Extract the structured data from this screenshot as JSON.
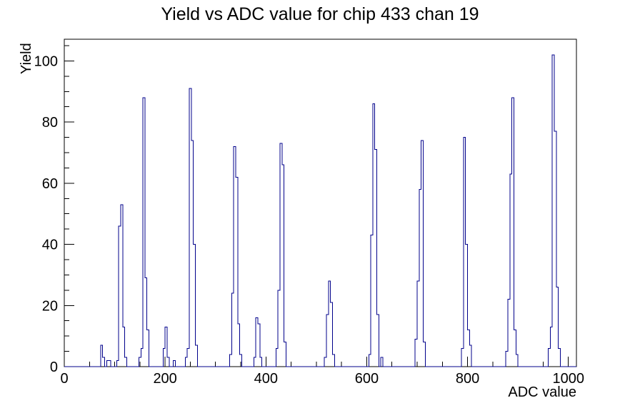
{
  "title": "Yield vs ADC value for chip 433 chan 19",
  "colors": {
    "histogram_line": "#00008b",
    "axis": "#000000",
    "background": "#ffffff"
  },
  "chart_data": {
    "type": "bar",
    "title": "Yield vs ADC value for chip 433 chan 19",
    "xlabel": "ADC value",
    "ylabel": "Yield",
    "xlim": [
      0,
      1016
    ],
    "ylim": [
      0,
      107.1
    ],
    "grid": false,
    "legend": "none",
    "bin_width": 4,
    "x_major_ticks": [
      0,
      200,
      400,
      600,
      800,
      1000
    ],
    "x_minor_step": 50,
    "y_major_ticks": [
      0,
      20,
      40,
      60,
      80,
      100
    ],
    "y_minor_step": 5,
    "bins_note": "sparse list of [bin_left_edge_ADC, yield_count]; all other bins are 0",
    "bins": [
      [
        72,
        7
      ],
      [
        76,
        3
      ],
      [
        84,
        2
      ],
      [
        88,
        2
      ],
      [
        104,
        2
      ],
      [
        108,
        46
      ],
      [
        112,
        53
      ],
      [
        116,
        13
      ],
      [
        120,
        3
      ],
      [
        148,
        3
      ],
      [
        152,
        6
      ],
      [
        156,
        88
      ],
      [
        160,
        29
      ],
      [
        164,
        12
      ],
      [
        196,
        6
      ],
      [
        200,
        13
      ],
      [
        204,
        3
      ],
      [
        216,
        2
      ],
      [
        240,
        3
      ],
      [
        244,
        6
      ],
      [
        248,
        91
      ],
      [
        252,
        74
      ],
      [
        256,
        40
      ],
      [
        260,
        7
      ],
      [
        328,
        4
      ],
      [
        332,
        24
      ],
      [
        336,
        72
      ],
      [
        340,
        62
      ],
      [
        344,
        14
      ],
      [
        348,
        4
      ],
      [
        376,
        3
      ],
      [
        380,
        16
      ],
      [
        384,
        14
      ],
      [
        388,
        3
      ],
      [
        420,
        6
      ],
      [
        424,
        25
      ],
      [
        428,
        73
      ],
      [
        432,
        66
      ],
      [
        436,
        8
      ],
      [
        516,
        3
      ],
      [
        520,
        17
      ],
      [
        524,
        28
      ],
      [
        528,
        21
      ],
      [
        532,
        4
      ],
      [
        604,
        4
      ],
      [
        608,
        43
      ],
      [
        612,
        86
      ],
      [
        616,
        71
      ],
      [
        620,
        17
      ],
      [
        628,
        3
      ],
      [
        696,
        9
      ],
      [
        700,
        28
      ],
      [
        704,
        58
      ],
      [
        708,
        74
      ],
      [
        712,
        8
      ],
      [
        788,
        6
      ],
      [
        792,
        75
      ],
      [
        796,
        40
      ],
      [
        800,
        12
      ],
      [
        804,
        7
      ],
      [
        876,
        5
      ],
      [
        880,
        22
      ],
      [
        884,
        63
      ],
      [
        888,
        88
      ],
      [
        892,
        12
      ],
      [
        896,
        4
      ],
      [
        960,
        6
      ],
      [
        964,
        13
      ],
      [
        968,
        102
      ],
      [
        972,
        77
      ],
      [
        976,
        26
      ],
      [
        980,
        6
      ]
    ]
  }
}
